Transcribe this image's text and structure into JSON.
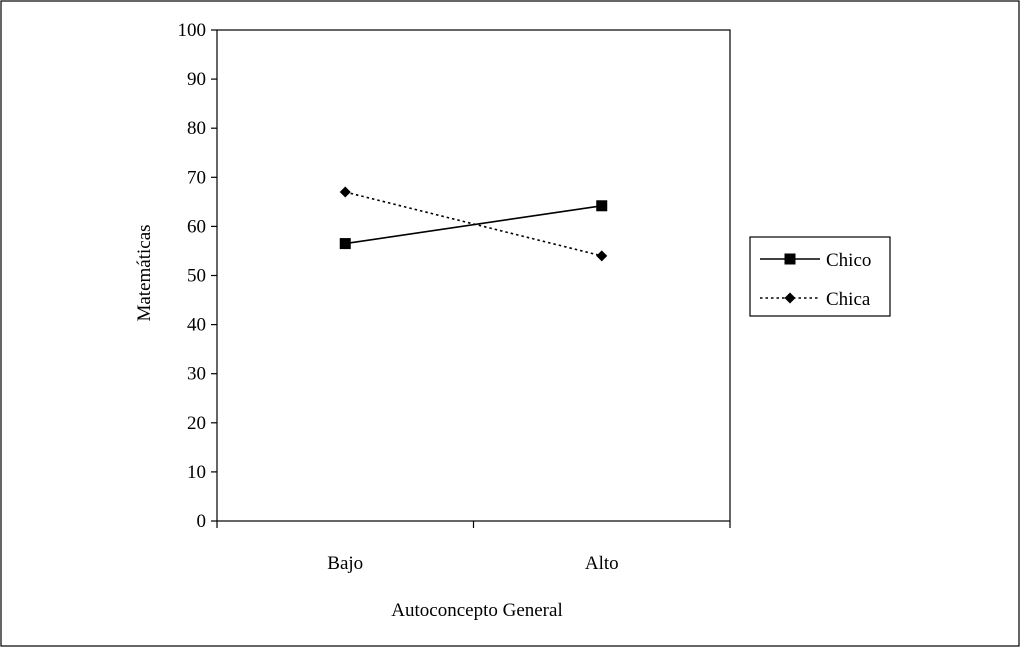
{
  "chart_data": {
    "type": "line",
    "title": "",
    "xlabel": "Autoconcepto General",
    "ylabel": "Matemáticas",
    "categories": [
      "Bajo",
      "Alto"
    ],
    "ylim": [
      0,
      100
    ],
    "yticks": [
      "0",
      "10",
      "20",
      "30",
      "40",
      "50",
      "60",
      "70",
      "80",
      "90",
      "100"
    ],
    "grid": false,
    "legend_position": "right",
    "series": [
      {
        "name": "Chico",
        "values": [
          56.5,
          64.2
        ],
        "marker": "square",
        "line_style": "solid",
        "color": "#000000"
      },
      {
        "name": "Chica",
        "values": [
          67,
          54
        ],
        "marker": "diamond",
        "line_style": "dotted",
        "color": "#000000"
      }
    ]
  }
}
